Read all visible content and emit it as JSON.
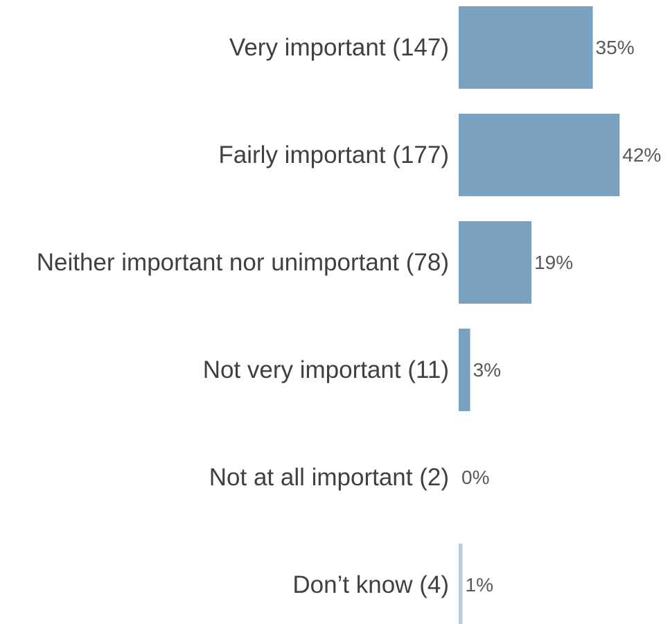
{
  "chart_data": {
    "type": "bar",
    "orientation": "horizontal",
    "categories": [
      "Very important (147)",
      "Fairly important (177)",
      "Neither important nor unimportant (78)",
      "Not very important (11)",
      "Not at all important (2)",
      "Don’t know (4)"
    ],
    "values": [
      35,
      42,
      19,
      3,
      0,
      1
    ],
    "value_labels": [
      "35%",
      "42%",
      "19%",
      "3%",
      "0%",
      "1%"
    ],
    "value_unit": "%",
    "title": "",
    "xlabel": "",
    "ylabel": "",
    "grid": false,
    "legend": "none",
    "bar_color": "#7aa1bf"
  }
}
